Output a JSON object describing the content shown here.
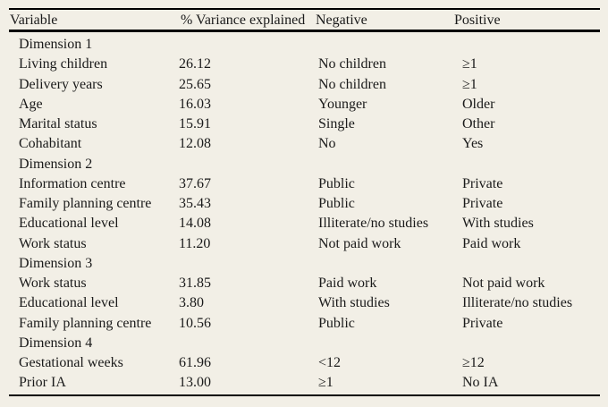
{
  "theme": {
    "page_background": "#f2efe6",
    "text_color": "#1a1a1a",
    "rule_color": "#000000"
  },
  "table": {
    "headers": [
      "Variable",
      "% Variance explained",
      "Negative",
      "Positive"
    ],
    "sections": [
      {
        "title": "Dimension 1",
        "rows": [
          {
            "variable": "Living children",
            "variance": "26.12",
            "negative": "No children",
            "positive": "≥1"
          },
          {
            "variable": "Delivery years",
            "variance": "25.65",
            "negative": "No children",
            "positive": "≥1"
          },
          {
            "variable": "Age",
            "variance": "16.03",
            "negative": "Younger",
            "positive": "Older"
          },
          {
            "variable": "Marital status",
            "variance": "15.91",
            "negative": "Single",
            "positive": "Other"
          },
          {
            "variable": "Cohabitant",
            "variance": "12.08",
            "negative": "No",
            "positive": "Yes"
          }
        ]
      },
      {
        "title": "Dimension 2",
        "rows": [
          {
            "variable": "Information centre",
            "variance": "37.67",
            "negative": "Public",
            "positive": "Private"
          },
          {
            "variable": "Family planning centre",
            "variance": "35.43",
            "negative": "Public",
            "positive": "Private"
          },
          {
            "variable": "Educational level",
            "variance": "14.08",
            "negative": "Illiterate/no studies",
            "positive": "With studies"
          },
          {
            "variable": "Work status",
            "variance": "11.20",
            "negative": "Not paid work",
            "positive": "Paid work"
          }
        ]
      },
      {
        "title": "Dimension 3",
        "rows": [
          {
            "variable": "Work status",
            "variance": "31.85",
            "negative": "Paid work",
            "positive": "Not paid work"
          },
          {
            "variable": "Educational level",
            "variance": "3.80",
            "negative": "With studies",
            "positive": "Illiterate/no studies"
          },
          {
            "variable": "Family planning centre",
            "variance": "10.56",
            "negative": "Public",
            "positive": "Private"
          }
        ]
      },
      {
        "title": "Dimension 4",
        "rows": [
          {
            "variable": "Gestational weeks",
            "variance": "61.96",
            "negative": "<12",
            "positive": "≥12"
          },
          {
            "variable": "Prior IA",
            "variance": "13.00",
            "negative": "≥1",
            "positive": "No IA"
          }
        ]
      }
    ]
  }
}
